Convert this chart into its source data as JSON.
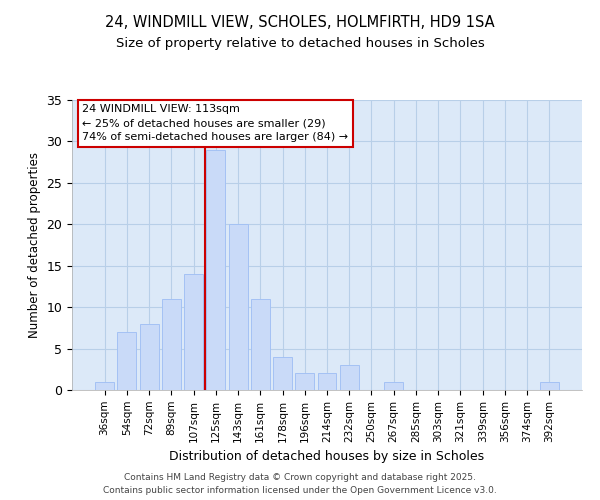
{
  "title1": "24, WINDMILL VIEW, SCHOLES, HOLMFIRTH, HD9 1SA",
  "title2": "Size of property relative to detached houses in Scholes",
  "xlabel": "Distribution of detached houses by size in Scholes",
  "ylabel": "Number of detached properties",
  "bar_labels": [
    "36sqm",
    "54sqm",
    "72sqm",
    "89sqm",
    "107sqm",
    "125sqm",
    "143sqm",
    "161sqm",
    "178sqm",
    "196sqm",
    "214sqm",
    "232sqm",
    "250sqm",
    "267sqm",
    "285sqm",
    "303sqm",
    "321sqm",
    "339sqm",
    "356sqm",
    "374sqm",
    "392sqm"
  ],
  "bar_values": [
    1,
    7,
    8,
    11,
    14,
    29,
    20,
    11,
    4,
    2,
    2,
    3,
    0,
    1,
    0,
    0,
    0,
    0,
    0,
    0,
    1
  ],
  "bar_color": "#c9daf8",
  "bar_edge_color": "#a4c2f4",
  "vline_color": "#cc0000",
  "annotation_text": "24 WINDMILL VIEW: 113sqm\n← 25% of detached houses are smaller (29)\n74% of semi-detached houses are larger (84) →",
  "annotation_box_color": "#ffffff",
  "annotation_box_edge": "#cc0000",
  "ylim": [
    0,
    35
  ],
  "yticks": [
    0,
    5,
    10,
    15,
    20,
    25,
    30,
    35
  ],
  "plot_bg_color": "#dce9f8",
  "background_color": "#ffffff",
  "grid_color": "#b8cfe8",
  "footer_line1": "Contains HM Land Registry data © Crown copyright and database right 2025.",
  "footer_line2": "Contains public sector information licensed under the Open Government Licence v3.0.",
  "vline_index": 4.5
}
